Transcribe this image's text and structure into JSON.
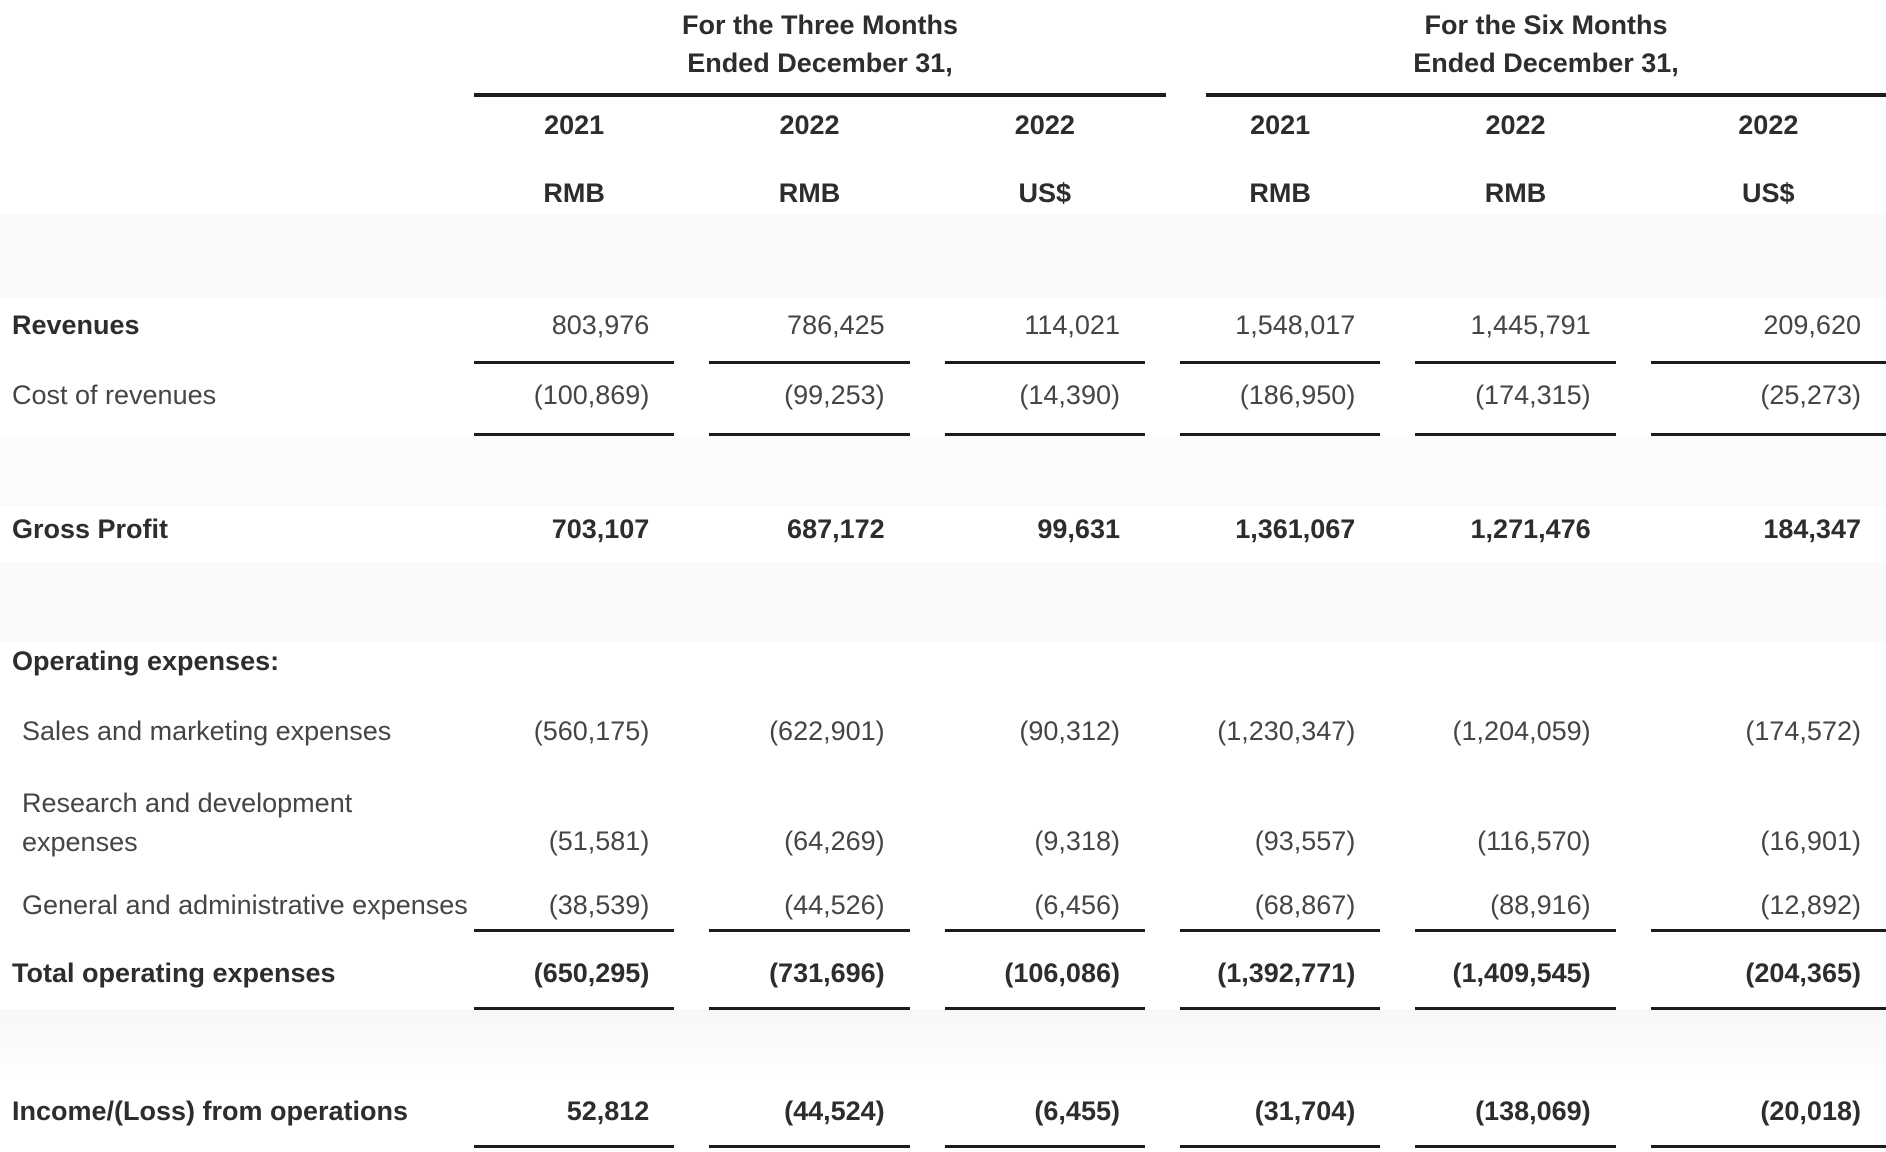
{
  "table": {
    "column_groups": [
      {
        "line1": "For the Three Months",
        "line2": "Ended December 31,"
      },
      {
        "line1": "For the Six Months",
        "line2": "Ended December 31,"
      }
    ],
    "years": [
      "2021",
      "2022",
      "2022",
      "2021",
      "2022",
      "2022"
    ],
    "currencies": [
      "RMB",
      "RMB",
      "US$",
      "RMB",
      "RMB",
      "US$"
    ],
    "rows": [
      {
        "label": "Revenues",
        "values": [
          "803,976",
          "786,425",
          "114,021",
          "1,548,017",
          "1,445,791",
          "209,620"
        ]
      },
      {
        "label": "Cost of revenues",
        "values": [
          "(100,869)",
          "(99,253)",
          "(14,390)",
          "(186,950)",
          "(174,315)",
          "(25,273)"
        ]
      },
      {
        "label": "Gross Profit",
        "values": [
          "703,107",
          "687,172",
          "99,631",
          "1,361,067",
          "1,271,476",
          "184,347"
        ]
      },
      {
        "label": "Operating expenses:",
        "values": []
      },
      {
        "label": "Sales and marketing expenses",
        "values": [
          "(560,175)",
          "(622,901)",
          "(90,312)",
          "(1,230,347)",
          "(1,204,059)",
          "(174,572)"
        ]
      },
      {
        "label_line1": "Research and development",
        "label_line2": "expenses",
        "values": [
          "(51,581)",
          "(64,269)",
          "(9,318)",
          "(93,557)",
          "(116,570)",
          "(16,901)"
        ]
      },
      {
        "label": "General and administrative expenses",
        "values": [
          "(38,539)",
          "(44,526)",
          "(6,456)",
          "(68,867)",
          "(88,916)",
          "(12,892)"
        ]
      },
      {
        "label": "Total operating expenses",
        "values": [
          "(650,295)",
          "(731,696)",
          "(106,086)",
          "(1,392,771)",
          "(1,409,545)",
          "(204,365)"
        ]
      },
      {
        "label": "Income/(Loss) from operations",
        "values": [
          "52,812",
          "(44,524)",
          "(6,455)",
          "(31,704)",
          "(138,069)",
          "(20,018)"
        ]
      }
    ],
    "colors": {
      "text": "#454545",
      "text_bold": "#2d2d2d",
      "rule": "#1c1c1c",
      "band": "#fafafa"
    }
  }
}
